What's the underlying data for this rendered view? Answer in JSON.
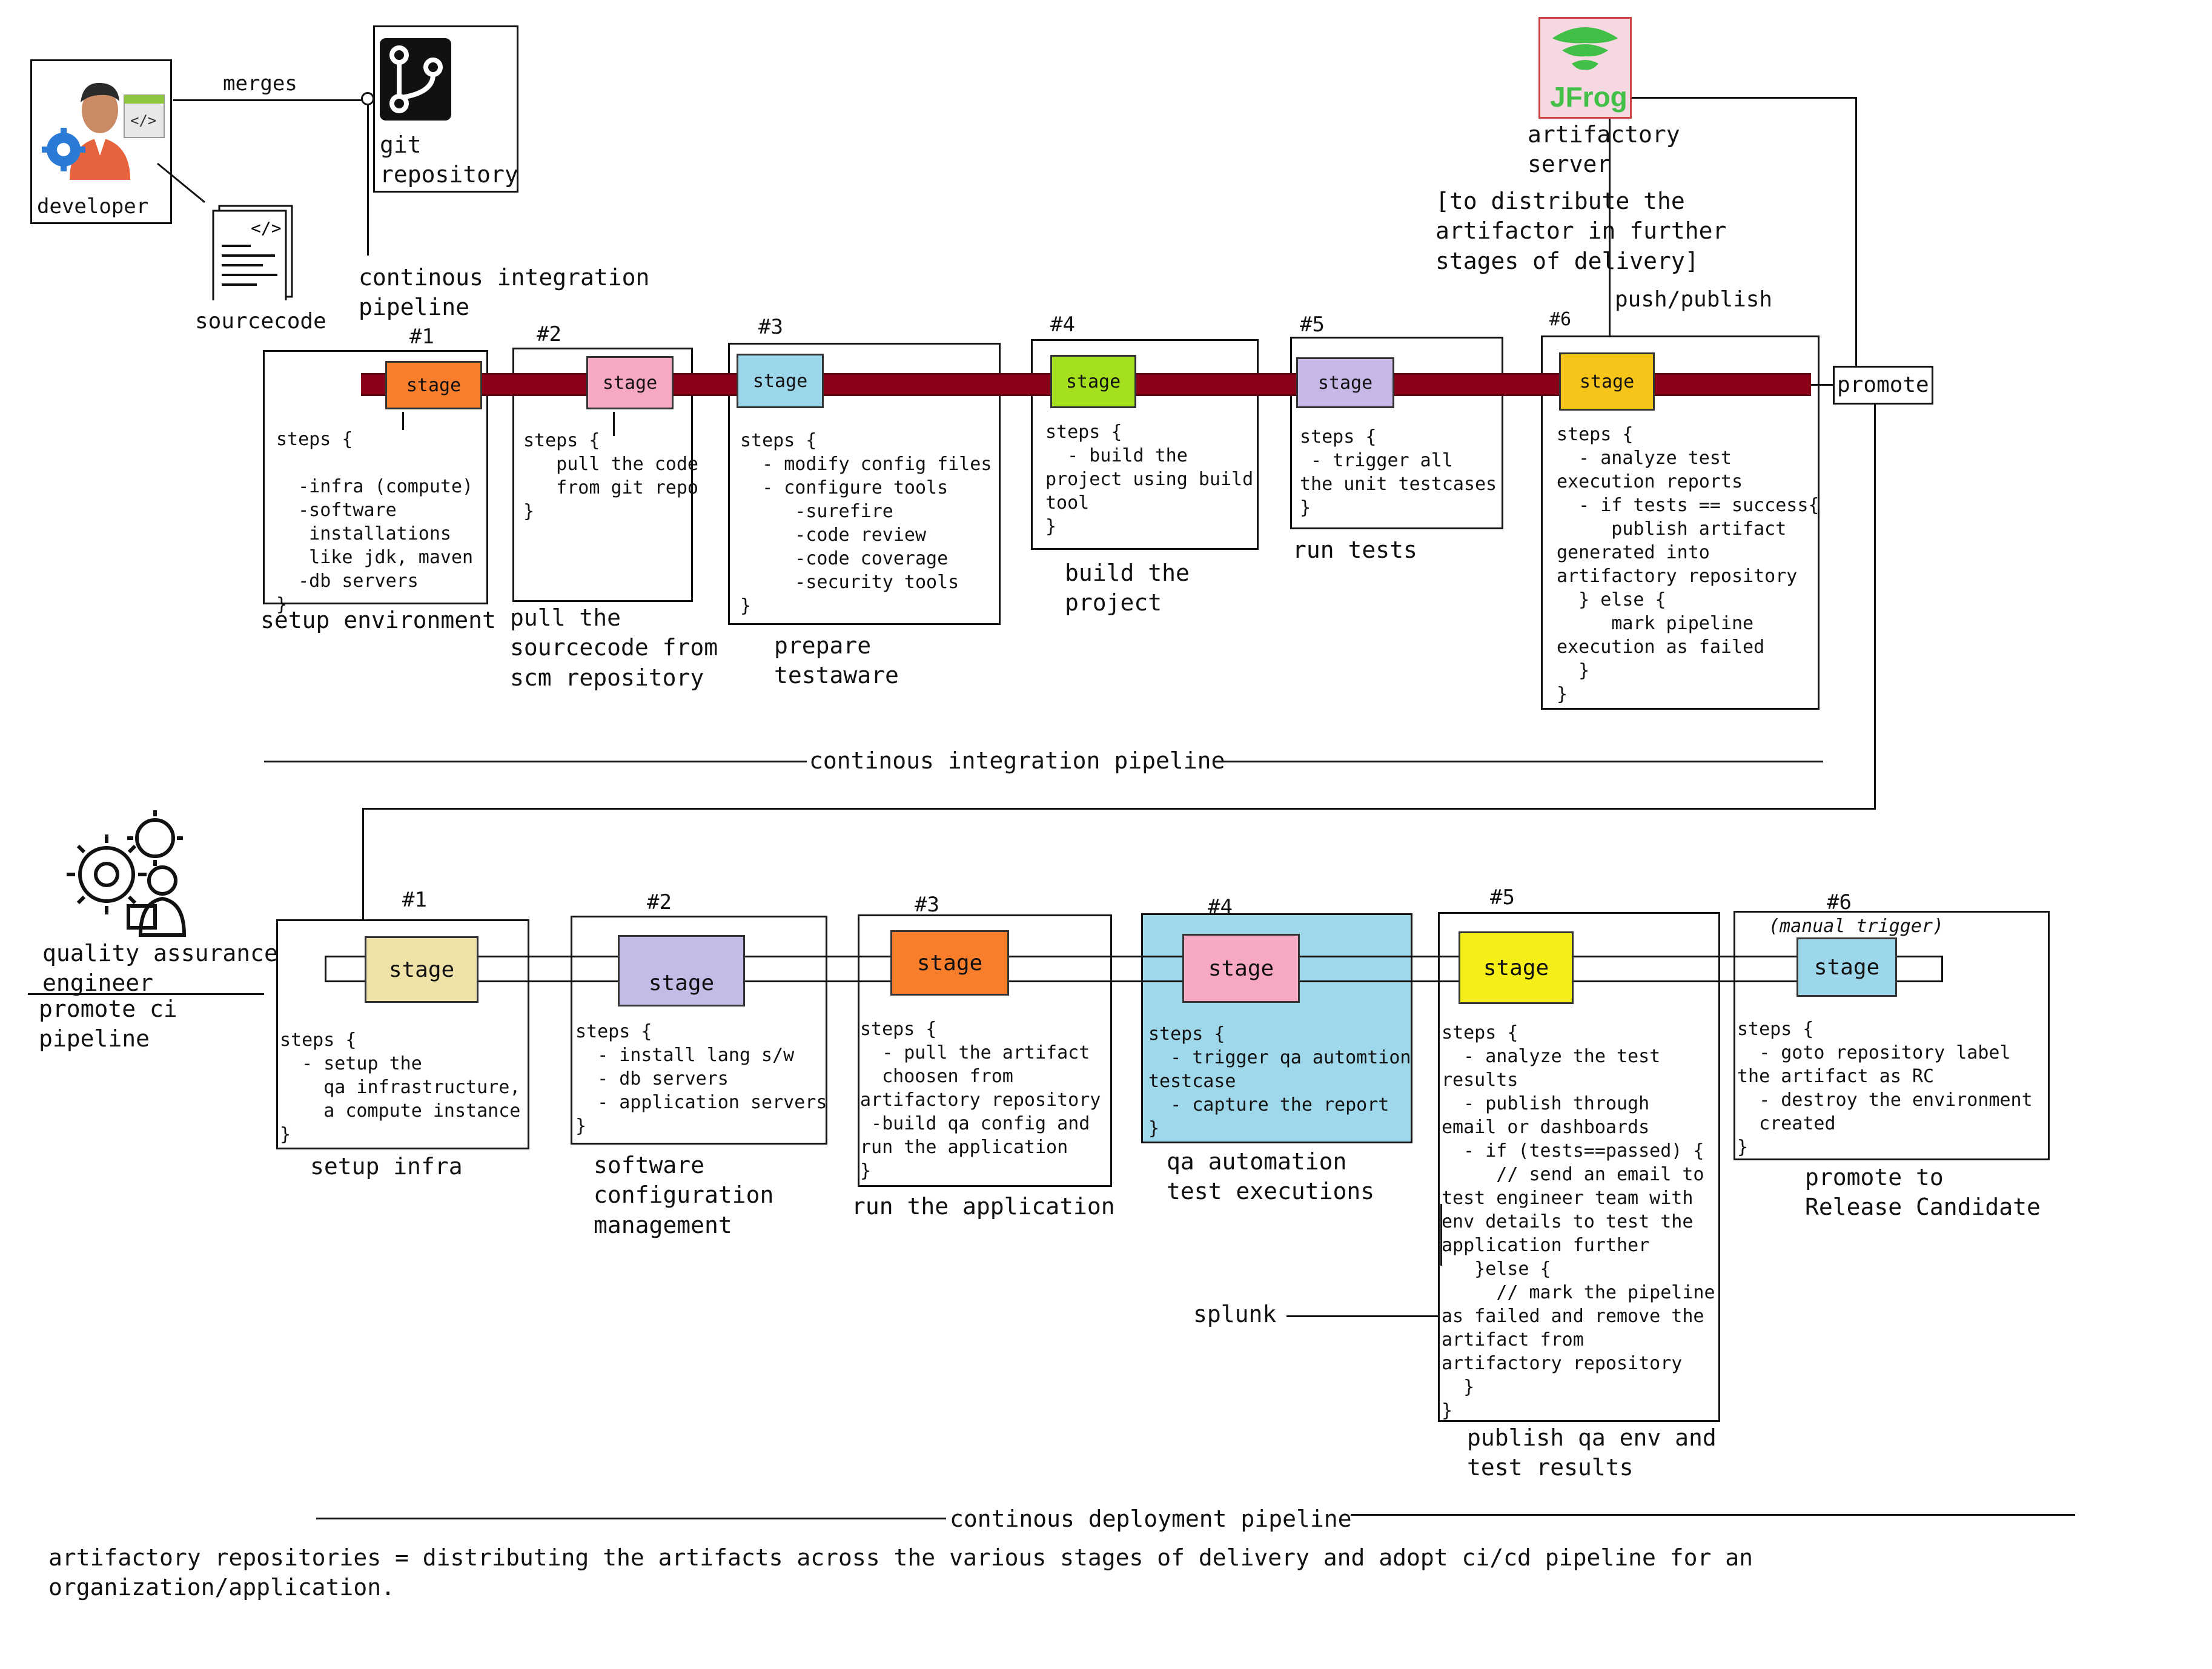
{
  "top": {
    "developer_label": "developer",
    "merges_label": "merges",
    "git_label": "git\nrepository",
    "sourcecode_label": "sourcecode",
    "ci_pipeline_label": "continous integration\npipeline",
    "artifactory_label": "artifactory\nserver",
    "artifactory_note": "[to distribute the\nartifactor in further\nstages of delivery]",
    "push_publish_label": "push/publish",
    "promote_label": "promote",
    "jfrog_logo_text": "JFrog",
    "stages": [
      {
        "num": "#1",
        "stage": "stage",
        "color": "#f97e2c",
        "steps": "steps {\n\n  -infra (compute)\n  -software\n   installations\n   like jdk, maven\n  -db servers\n}",
        "caption": "setup environment"
      },
      {
        "num": "#2",
        "stage": "stage",
        "color": "#f7a8c4",
        "steps": "steps {\n   pull the code\n   from git repo\n}",
        "caption": "pull the\nsourcecode from\nscm repository"
      },
      {
        "num": "#3",
        "stage": "stage",
        "color": "#9bd6ea",
        "steps": "steps {\n  - modify config files\n  - configure tools\n     -surefire\n     -code review\n     -code coverage\n     -security tools\n}",
        "caption": "prepare\ntestaware"
      },
      {
        "num": "#4",
        "stage": "stage",
        "color": "#a4e01e",
        "steps": "steps {\n  - build the\nproject using build\ntool\n}",
        "caption": "build the\nproject"
      },
      {
        "num": "#5",
        "stage": "stage",
        "color": "#c8b8e8",
        "steps": "steps {\n - trigger all\nthe unit testcases\n}",
        "caption": "run tests"
      },
      {
        "num": "#6",
        "stage": "stage",
        "color": "#f7c41a",
        "steps": "steps {\n  - analyze test\nexecution reports\n  - if tests == success{\n     publish artifact\ngenerated into\nartifactory repository\n  } else {\n     mark pipeline\nexecution as failed\n  }\n}",
        "caption": ""
      }
    ],
    "ci_footer": "continous integration pipeline"
  },
  "bottom": {
    "qa_label": "quality assurance\nengineer",
    "promote_ci_label": "promote ci\npipeline",
    "stages": [
      {
        "num": "#1",
        "stage": "stage",
        "color": "#efe2a8",
        "steps": "steps {\n  - setup the\n    qa infrastructure,\n    a compute instance\n}",
        "caption": "setup infra"
      },
      {
        "num": "#2",
        "stage": "stage",
        "color": "#c4bce6",
        "steps": "steps {\n  - install lang s/w\n  - db servers\n  - application servers\n}",
        "caption": "software\nconfiguration\nmanagement"
      },
      {
        "num": "#3",
        "stage": "stage",
        "color": "#f97e2c",
        "steps": "steps {\n  - pull the artifact\n  choosen from\nartifactory repository\n -build qa config and\nrun the application\n}",
        "caption": "run the application"
      },
      {
        "num": "#4",
        "stage": "stage",
        "color": "#f7a8c4",
        "steps": "steps {\n  - trigger qa automtion\ntestcase\n  - capture the report\n}",
        "caption": "qa automation\ntest executions"
      },
      {
        "num": "#5",
        "stage": "stage",
        "color": "#f5ee18",
        "steps": "steps {\n  - analyze the test\nresults\n  - publish through\nemail or dashboards\n  - if (tests==passed) {\n     // send an email to\ntest engineer team with\nenv details to test the\napplication further\n   }else {\n     // mark the pipeline\nas failed and remove the\nartifact from\nartifactory repository\n  }\n}",
        "caption": "publish qa env and\ntest results"
      },
      {
        "num": "#6",
        "stage": "stage",
        "color": "#9bd6ea",
        "steps": "steps {\n  - goto repository label\nthe artifact as RC\n  - destroy the environment\n  created\n}",
        "caption": "promote to\nRelease Candidate"
      }
    ],
    "manual_trigger": "(manual trigger)",
    "splunk_label": "splunk",
    "cd_footer": "continous deployment pipeline",
    "qa4_box_color": "#9fd8ea"
  },
  "footnote": "artifactory repositories = distributing the artifacts across the various stages of delivery and adopt ci/cd pipeline for an\norganization/application."
}
